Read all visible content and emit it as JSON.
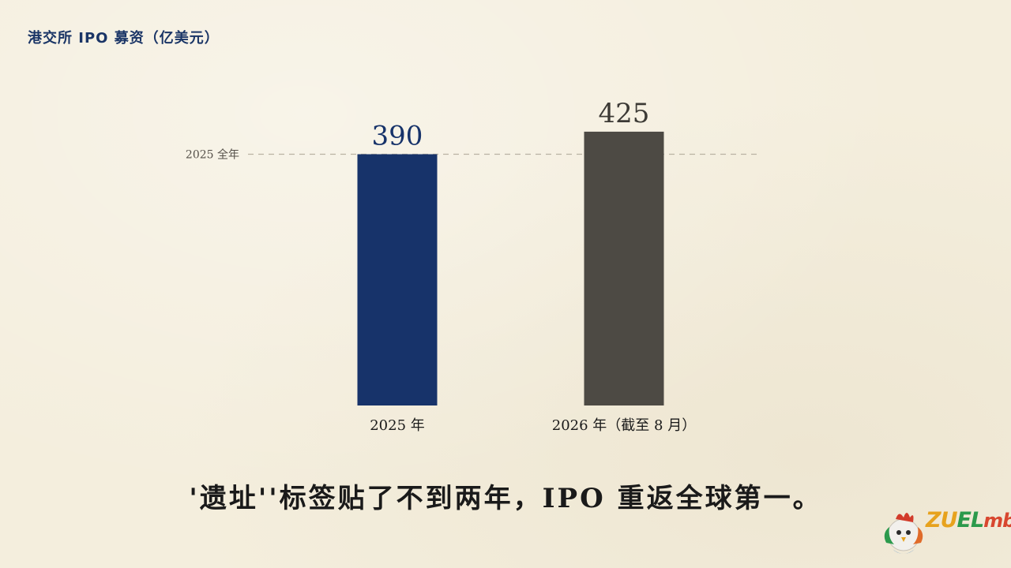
{
  "chart_data": {
    "type": "bar",
    "title": "港交所 IPO 募资（亿美元）",
    "categories": [
      "2025 年",
      "2026 年（截至 8 月）"
    ],
    "values": [
      390,
      425
    ],
    "data_labels": [
      "390",
      "425"
    ],
    "ylim": [
      0,
      480
    ],
    "grid": false,
    "reference_line": {
      "value": 390,
      "label": "2025 全年",
      "style": "dashed"
    },
    "colors": [
      "#17336a",
      "#4d4a44"
    ],
    "label_colors": [
      "#17336a",
      "#3c3a35"
    ]
  },
  "caption": "'遗址''标签贴了不到两年，IPO 重返全球第一。",
  "logo": {
    "text_1": "ZU",
    "text_2": "EL",
    "text_3": "mba",
    "icon": "rooster-mascot-icon"
  }
}
